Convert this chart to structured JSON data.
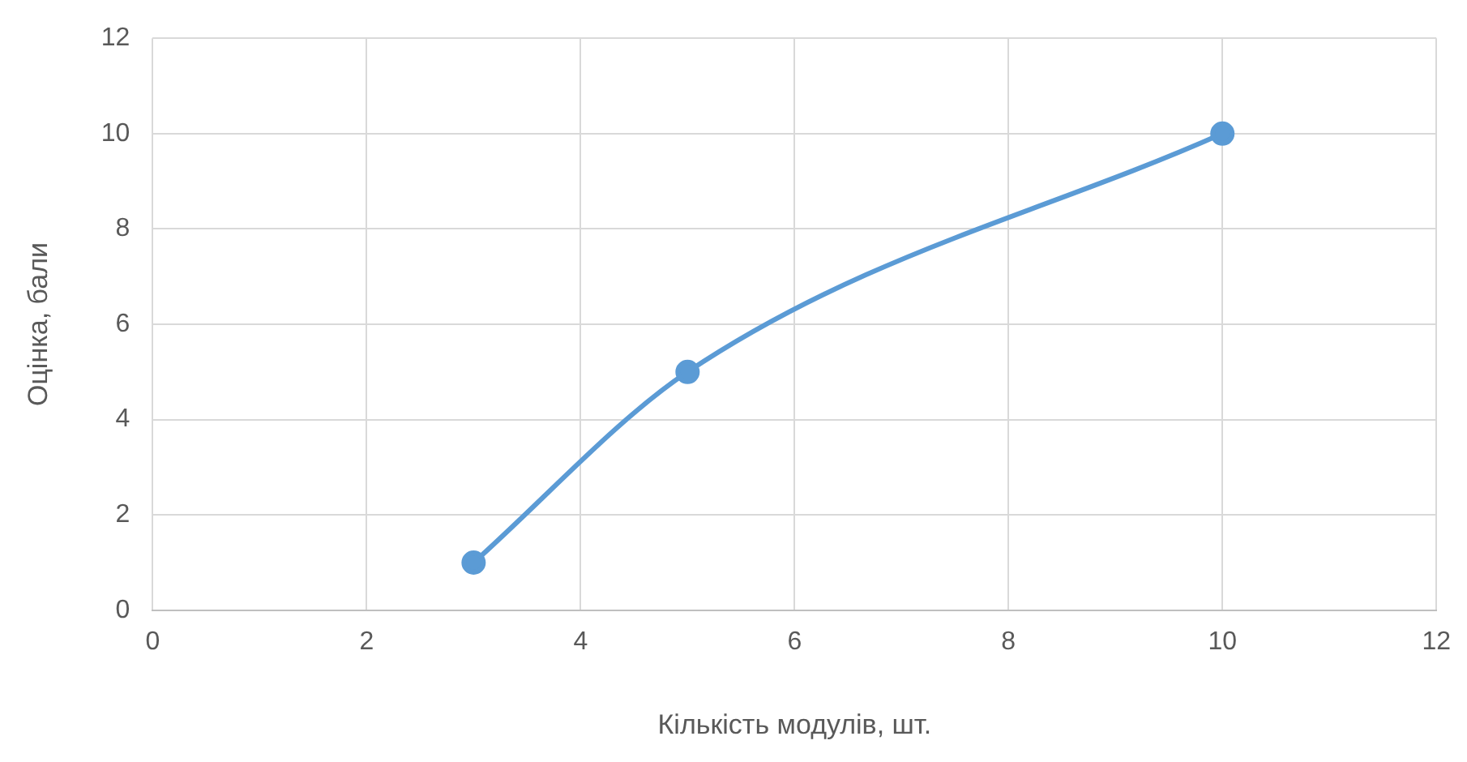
{
  "chart_data": {
    "type": "line",
    "xlabel": "Кількість модулів, шт.",
    "ylabel": "Оцінка, бали",
    "x": [
      3,
      5,
      10
    ],
    "series": [
      {
        "color": "#5b9bd5",
        "values": [
          1,
          5,
          10
        ]
      }
    ],
    "xlim": [
      0,
      12
    ],
    "xticks": [
      0,
      2,
      4,
      6,
      8,
      10,
      12
    ],
    "ylim": [
      0,
      12
    ],
    "yticks": [
      0,
      2,
      4,
      6,
      8,
      10,
      12
    ],
    "grid": true,
    "legend": false,
    "marker": "circle",
    "line_style": "solid"
  }
}
